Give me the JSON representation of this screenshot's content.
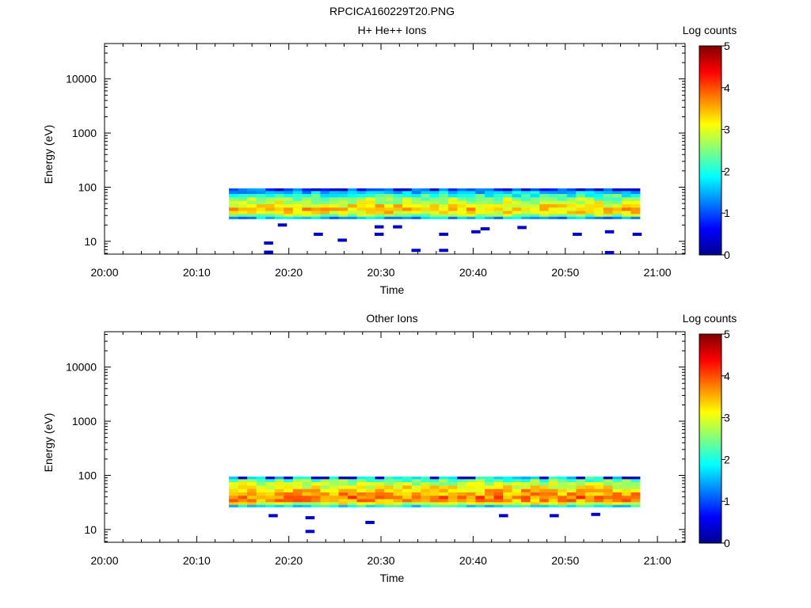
{
  "figure": {
    "title": "RPCICA160229T20.PNG"
  },
  "chart_data": [
    {
      "type": "heatmap",
      "title": "H+ He++ Ions",
      "xlabel": "Time",
      "ylabel": "Energy (eV)",
      "x_ticks": [
        "20:00",
        "20:10",
        "20:20",
        "20:30",
        "20:40",
        "20:50",
        "21:00"
      ],
      "y_ticks": [
        "10",
        "100",
        "1000",
        "10000"
      ],
      "y_scale": "log",
      "ylim": [
        5.8,
        45000
      ],
      "xlim": [
        "20:00",
        "21:03"
      ],
      "data_extent": {
        "time_start": "20:13.5",
        "time_end": "20:58.1",
        "energy_min": 26,
        "energy_max": 95
      },
      "colorbar": {
        "label": "Log counts",
        "ticks": [
          "0",
          "1",
          "2",
          "3",
          "4",
          "5"
        ],
        "range": [
          0,
          5
        ],
        "colormap": "jet"
      },
      "profile": [
        {
          "energy": 90,
          "log_counts": 1.0
        },
        {
          "energy": 80,
          "log_counts": 1.6
        },
        {
          "energy": 70,
          "log_counts": 2.1
        },
        {
          "energy": 60,
          "log_counts": 2.6
        },
        {
          "energy": 52,
          "log_counts": 2.9
        },
        {
          "energy": 45,
          "log_counts": 3.2
        },
        {
          "energy": 39,
          "log_counts": 3.4
        },
        {
          "energy": 34,
          "log_counts": 3.2
        },
        {
          "energy": 30,
          "log_counts": 2.6
        },
        {
          "energy": 27,
          "log_counts": 1.5
        }
      ],
      "sparse_points": [
        {
          "time": "20:17.8",
          "energy": 9.3,
          "log_counts": 0.3
        },
        {
          "time": "20:17.8",
          "energy": 6.3,
          "log_counts": 0.3
        },
        {
          "time": "20:19.3",
          "energy": 20,
          "log_counts": 0.3
        },
        {
          "time": "20:23.2",
          "energy": 13.5,
          "log_counts": 0.3
        },
        {
          "time": "20:25.8",
          "energy": 10.5,
          "log_counts": 0.3
        },
        {
          "time": "20:29.8",
          "energy": 18.5,
          "log_counts": 0.3
        },
        {
          "time": "20:29.8",
          "energy": 13.5,
          "log_counts": 0.3
        },
        {
          "time": "20:31.8",
          "energy": 18.5,
          "log_counts": 0.3
        },
        {
          "time": "20:33.8",
          "energy": 6.8,
          "log_counts": 0.3
        },
        {
          "time": "20:36.8",
          "energy": 13.5,
          "log_counts": 0.3
        },
        {
          "time": "20:36.8",
          "energy": 6.8,
          "log_counts": 0.3
        },
        {
          "time": "20:40.3",
          "energy": 15,
          "log_counts": 0.3
        },
        {
          "time": "20:41.3",
          "energy": 17,
          "log_counts": 0.3
        },
        {
          "time": "20:45.3",
          "energy": 18,
          "log_counts": 0.3
        },
        {
          "time": "20:51.3",
          "energy": 13.5,
          "log_counts": 0.3
        },
        {
          "time": "20:54.8",
          "energy": 15,
          "log_counts": 0.3
        },
        {
          "time": "20:54.8",
          "energy": 6.2,
          "log_counts": 0.3
        },
        {
          "time": "20:57.8",
          "energy": 13.5,
          "log_counts": 0.3
        }
      ]
    },
    {
      "type": "heatmap",
      "title": "Other Ions",
      "xlabel": "Time",
      "ylabel": "Energy (eV)",
      "x_ticks": [
        "20:00",
        "20:10",
        "20:20",
        "20:30",
        "20:40",
        "20:50",
        "21:00"
      ],
      "y_ticks": [
        "10",
        "100",
        "1000",
        "10000"
      ],
      "y_scale": "log",
      "ylim": [
        5.8,
        45000
      ],
      "xlim": [
        "20:00",
        "21:03"
      ],
      "data_extent": {
        "time_start": "20:13.5",
        "time_end": "20:58.1",
        "energy_min": 26,
        "energy_max": 95
      },
      "colorbar": {
        "label": "Log counts",
        "ticks": [
          "0",
          "1",
          "2",
          "3",
          "4",
          "5"
        ],
        "range": [
          0,
          5
        ],
        "colormap": "jet"
      },
      "profile": [
        {
          "energy": 90,
          "log_counts": 1.9
        },
        {
          "energy": 80,
          "log_counts": 2.4
        },
        {
          "energy": 70,
          "log_counts": 2.8
        },
        {
          "energy": 60,
          "log_counts": 3.1
        },
        {
          "energy": 52,
          "log_counts": 3.4
        },
        {
          "energy": 45,
          "log_counts": 3.6
        },
        {
          "energy": 39,
          "log_counts": 3.8
        },
        {
          "energy": 34,
          "log_counts": 3.6
        },
        {
          "energy": 30,
          "log_counts": 3.0
        },
        {
          "energy": 27,
          "log_counts": 1.9
        }
      ],
      "sparse_points": [
        {
          "time": "20:18.3",
          "energy": 18,
          "log_counts": 0.3
        },
        {
          "time": "20:22.3",
          "energy": 16.5,
          "log_counts": 0.3
        },
        {
          "time": "20:22.3",
          "energy": 9.2,
          "log_counts": 0.3
        },
        {
          "time": "20:28.8",
          "energy": 13.5,
          "log_counts": 0.3
        },
        {
          "time": "20:43.3",
          "energy": 18,
          "log_counts": 0.3
        },
        {
          "time": "20:48.8",
          "energy": 18,
          "log_counts": 0.3
        },
        {
          "time": "20:53.3",
          "energy": 19,
          "log_counts": 0.3
        }
      ]
    }
  ]
}
